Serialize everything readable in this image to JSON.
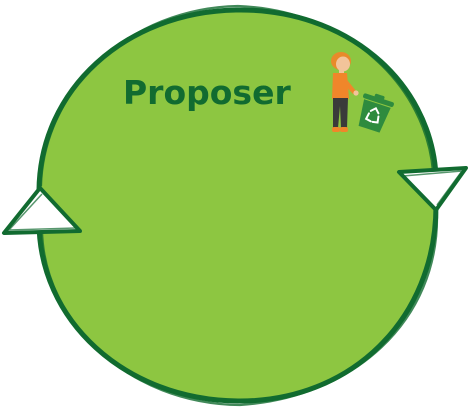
{
  "diagram": {
    "label": "Proposer",
    "colors": {
      "fill": "#8dc641",
      "stroke": "#116b30",
      "text": "#116b30",
      "skin": "#f2c49a",
      "hair": "#e88a2a",
      "shirt": "#f0862a",
      "pants": "#3a3a3a",
      "bin": "#2e8b3e",
      "recycle": "#ffffff"
    },
    "icons": [
      "person-icon",
      "recycle-bin-icon"
    ]
  }
}
